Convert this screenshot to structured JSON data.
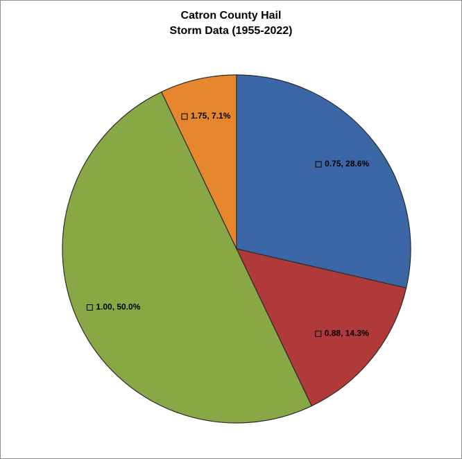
{
  "chart_data": {
    "type": "pie",
    "title": "Catron County Hail\nStorm Data (1955-2022)",
    "values": [
      28.6,
      14.3,
      50.0,
      7.1
    ],
    "value_labels": [
      "0.75, 28.6%",
      "0.88, 14.3%",
      "1.00, 50.0%",
      "1.75, 7.1%"
    ],
    "colors": [
      "#3b67a6",
      "#b0393a",
      "#87a845",
      "#e6872e"
    ]
  }
}
